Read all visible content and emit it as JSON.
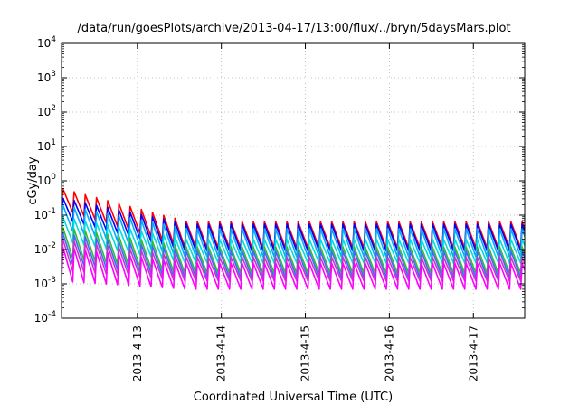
{
  "chart_data": {
    "type": "line",
    "title": "/data/run/goesPlots/archive/2013-04-17/13:00/flux/../bryn/5daysMars.plot",
    "xlabel": "Coordinated Universal Time (UTC)",
    "ylabel": "cGy/day",
    "x_range": [
      "2013-04-12 02:20",
      "2013-04-17 14:40"
    ],
    "xticks": [
      {
        "value": "2013-04-13 00:00",
        "label": "2013-4-13"
      },
      {
        "value": "2013-04-14 00:00",
        "label": "2013-4-14"
      },
      {
        "value": "2013-04-15 00:00",
        "label": "2013-4-15"
      },
      {
        "value": "2013-04-16 00:00",
        "label": "2013-4-16"
      },
      {
        "value": "2013-04-17 00:00",
        "label": "2013-4-17"
      }
    ],
    "y_scale": "log",
    "ylim": [
      0.0001,
      10000
    ],
    "yticks": [
      {
        "value": 0.0001,
        "base": "10",
        "exp": "-4"
      },
      {
        "value": 0.001,
        "base": "10",
        "exp": "-3"
      },
      {
        "value": 0.01,
        "base": "10",
        "exp": "-2"
      },
      {
        "value": 0.1,
        "base": "10",
        "exp": "-1"
      },
      {
        "value": 1,
        "base": "10",
        "exp": "0"
      },
      {
        "value": 10,
        "base": "10",
        "exp": "1"
      },
      {
        "value": 100,
        "base": "10",
        "exp": "2"
      },
      {
        "value": 1000,
        "base": "10",
        "exp": "3"
      },
      {
        "value": 10000,
        "base": "10",
        "exp": "4"
      }
    ],
    "grid": true,
    "legend": "none",
    "oscillation_period_hours": 3.2,
    "series": [
      {
        "color": "#ff0000",
        "peak_start": 0.6,
        "peak_end": 0.065,
        "trough_start": 0.15,
        "trough_end": 0.011
      },
      {
        "color": "#0000ff",
        "peak_start": 0.32,
        "peak_end": 0.055,
        "trough_start": 0.08,
        "trough_end": 0.009
      },
      {
        "color": "#00aaff",
        "peak_start": 0.2,
        "peak_end": 0.04,
        "trough_start": 0.04,
        "trough_end": 0.006
      },
      {
        "color": "#00dddd",
        "peak_start": 0.09,
        "peak_end": 0.02,
        "trough_start": 0.018,
        "trough_end": 0.004
      },
      {
        "color": "#33bb33",
        "peak_start": 0.045,
        "peak_end": 0.012,
        "trough_start": 0.006,
        "trough_end": 0.002
      },
      {
        "color": "#4466ff",
        "peak_start": 0.03,
        "peak_end": 0.009,
        "trough_start": 0.004,
        "trough_end": 0.0015
      },
      {
        "color": "#cc33cc",
        "peak_start": 0.02,
        "peak_end": 0.006,
        "trough_start": 0.0025,
        "trough_end": 0.0012
      },
      {
        "color": "#ff00ff",
        "peak_start": 0.012,
        "peak_end": 0.004,
        "trough_start": 0.0012,
        "trough_end": 0.0007
      }
    ]
  }
}
